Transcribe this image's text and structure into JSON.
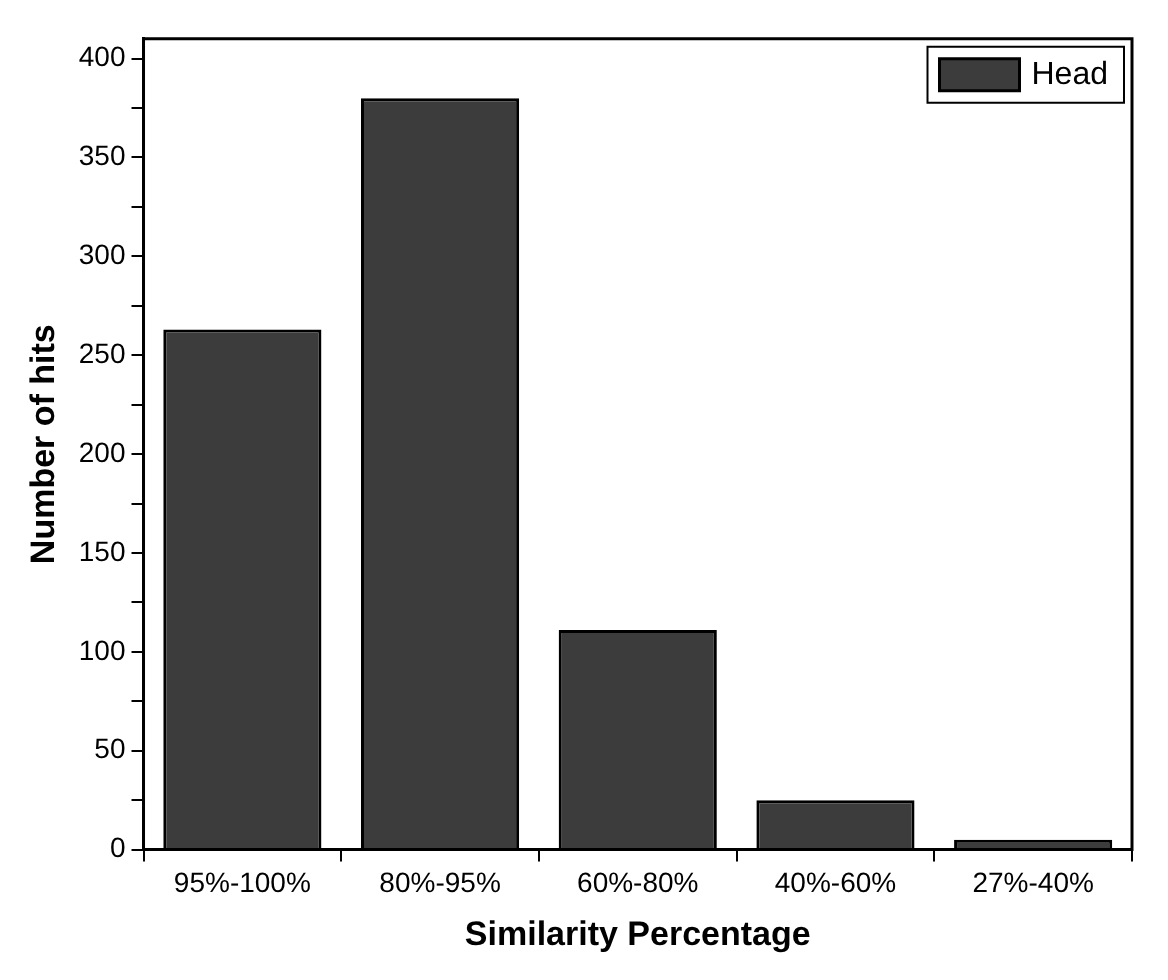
{
  "chart_data": {
    "type": "bar",
    "xlabel": "Similarity Percentage",
    "ylabel": "Number of hits",
    "categories": [
      "95%-100%",
      "80%-95%",
      "60%-80%",
      "40%-60%",
      "27%-40%"
    ],
    "series": [
      {
        "name": "Head",
        "color": "#3c3c3c",
        "values": [
          263,
          380,
          111,
          25,
          5
        ]
      }
    ],
    "ylim": [
      0,
      410
    ],
    "yticks": [
      0,
      {
        "value": 25,
        "label": null
      },
      50,
      {
        "value": 75,
        "label": null
      },
      100,
      {
        "value": 125,
        "label": null
      },
      150,
      {
        "value": 175,
        "label": null
      },
      200,
      {
        "value": 225,
        "label": null
      },
      250,
      {
        "value": 275,
        "label": null
      },
      300,
      {
        "value": 325,
        "label": null
      },
      350,
      {
        "value": 375,
        "label": null
      },
      400
    ],
    "grid": false,
    "legend": "top right"
  }
}
